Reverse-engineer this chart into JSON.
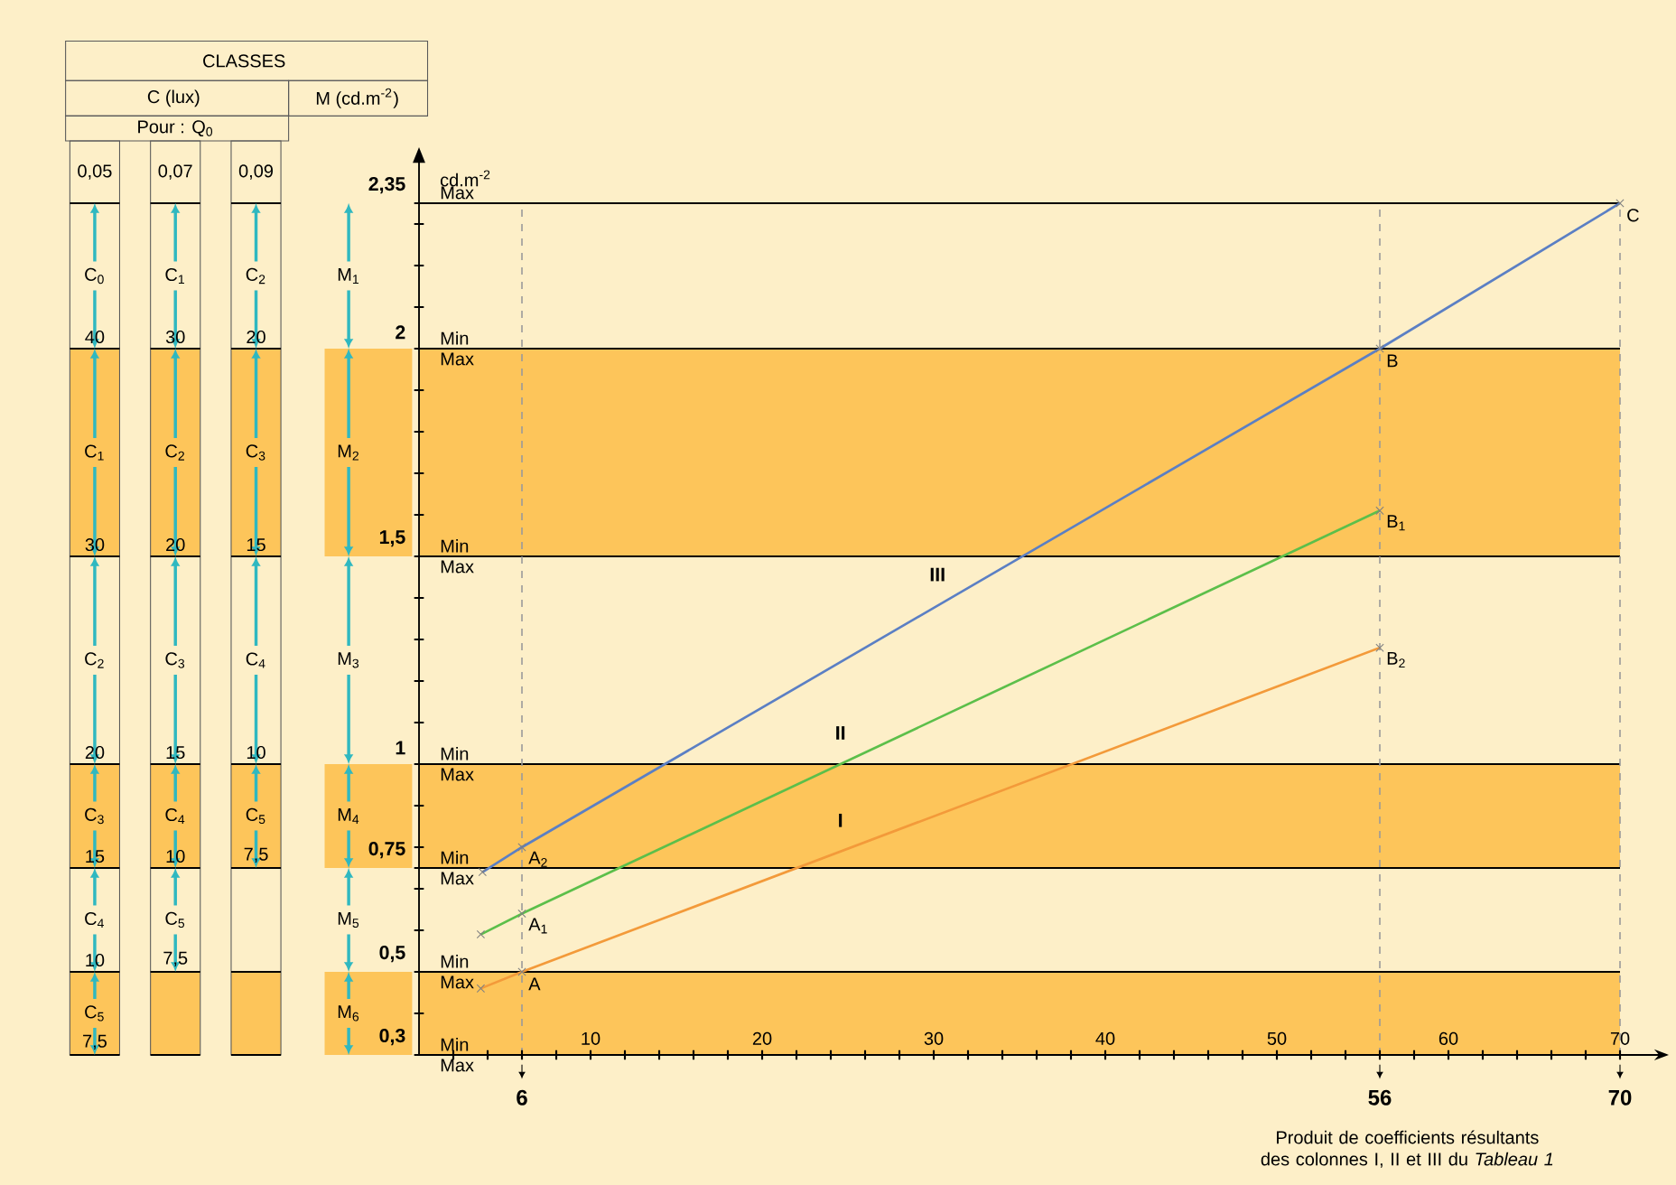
{
  "chart_data": {
    "type": "line",
    "xlabel": "Produit de coefficients résultants des colonnes I, II et III du *Tableau 1*",
    "ylabel": "cd.m$^{-2}$",
    "xlim": [
      0,
      72
    ],
    "ylim": [
      0.3,
      2.45
    ],
    "xticks": [
      {
        "value": 2,
        "label": null
      },
      {
        "value": 4,
        "label": null
      },
      {
        "value": 6,
        "label": null
      },
      {
        "value": 8,
        "label": null
      },
      10,
      {
        "value": 12,
        "label": null
      },
      {
        "value": 14,
        "label": null
      },
      {
        "value": 16,
        "label": null
      },
      {
        "value": 18,
        "label": null
      },
      20,
      {
        "value": 22,
        "label": null
      },
      {
        "value": 24,
        "label": null
      },
      {
        "value": 26,
        "label": null
      },
      {
        "value": 28,
        "label": null
      },
      30,
      {
        "value": 32,
        "label": null
      },
      {
        "value": 34,
        "label": null
      },
      {
        "value": 36,
        "label": null
      },
      {
        "value": 38,
        "label": null
      },
      40,
      {
        "value": 42,
        "label": null
      },
      {
        "value": 44,
        "label": null
      },
      {
        "value": 46,
        "label": null
      },
      {
        "value": 48,
        "label": null
      },
      50,
      {
        "value": 52,
        "label": null
      },
      {
        "value": 54,
        "label": null
      },
      {
        "value": 56,
        "label": null
      },
      {
        "value": 58,
        "label": null
      },
      60,
      {
        "value": 62,
        "label": null
      },
      {
        "value": 64,
        "label": null
      },
      {
        "value": 66,
        "label": null
      },
      {
        "value": 68,
        "label": null
      },
      70
    ],
    "yticks": [
      {
        "value": 0.3,
        "label": "0,3"
      },
      {
        "value": 0.4,
        "label": null
      },
      {
        "value": 0.5,
        "label": "0,5"
      },
      {
        "value": 0.6,
        "label": null
      },
      {
        "value": 0.7,
        "label": null
      },
      {
        "value": 0.75,
        "label": "0,75"
      },
      {
        "value": 0.8,
        "label": null
      },
      {
        "value": 0.9,
        "label": null
      },
      1,
      {
        "value": 1.1,
        "label": null
      },
      {
        "value": 1.2,
        "label": null
      },
      {
        "value": 1.3,
        "label": null
      },
      {
        "value": 1.4,
        "label": null
      },
      {
        "value": 1.5,
        "label": "1,5"
      },
      {
        "value": 1.6,
        "label": null
      },
      {
        "value": 1.7,
        "label": null
      },
      {
        "value": 1.8,
        "label": null
      },
      {
        "value": 1.9,
        "label": null
      },
      2,
      {
        "value": 2.1,
        "label": null
      },
      {
        "value": 2.2,
        "label": null
      },
      {
        "value": 2.3,
        "label": null
      },
      {
        "value": 2.35,
        "label": "2,35"
      }
    ],
    "marker": "cross",
    "series": [
      {
        "name": "I",
        "color": "#f39a3a",
        "x": [
          3.6,
          6,
          56
        ],
        "values": [
          0.46,
          0.5,
          1.28
        ]
      },
      {
        "name": "II",
        "color": "#5cbf4a",
        "x": [
          3.6,
          6,
          56
        ],
        "values": [
          0.59,
          0.64,
          1.61
        ]
      },
      {
        "name": "III",
        "color": "#5b7fc4",
        "x": [
          3.7,
          6,
          56,
          70
        ],
        "values": [
          0.74,
          0.8,
          2,
          2.35
        ]
      }
    ],
    "bands": [
      {
        "axis": "y",
        "from": 1.5,
        "to": 2,
        "color": "#fdc55a"
      },
      {
        "axis": "y",
        "from": 0.75,
        "to": 1,
        "color": "#fdc55a"
      },
      {
        "axis": "y",
        "from": 0.3,
        "to": 0.5,
        "color": "#fdc55a"
      }
    ],
    "ref_lines": [
      {
        "axis": "y",
        "value": 2.35
      },
      {
        "axis": "y",
        "value": 2
      },
      {
        "axis": "y",
        "value": 1.5
      },
      {
        "axis": "y",
        "value": 1
      },
      {
        "axis": "y",
        "value": 0.75
      },
      {
        "axis": "y",
        "value": 0.5
      },
      {
        "axis": "x",
        "value": 6,
        "label": "6",
        "color": "#9a9a9a",
        "line_style": "dashed"
      },
      {
        "axis": "x",
        "value": 56,
        "label": "56",
        "color": "#9a9a9a",
        "line_style": "dashed"
      },
      {
        "axis": "x",
        "value": 70,
        "label": "70",
        "color": "#9a9a9a",
        "line_style": "dashed"
      }
    ],
    "annotations": [
      "CLASSES",
      "C (lux)",
      "M (cd.m$^{-2}$)",
      "Pour : Q$_{0}$",
      "0,05",
      "0,07",
      "0,09",
      "C$_{0}$",
      "C$_{1}$",
      "C$_{2}$",
      "C$_{3}$",
      "C$_{4}$",
      "C$_{5}$",
      "C$_{1}$",
      "C$_{2}$",
      "C$_{3}$",
      "C$_{4}$",
      "C$_{5}$",
      "C$_{2}$",
      "C$_{3}$",
      "C$_{4}$",
      "C$_{5}$",
      "M$_{1}$",
      "M$_{2}$",
      "M$_{3}$",
      "M$_{4}$",
      "M$_{5}$",
      "M$_{6}$",
      "40",
      "30",
      "20",
      "15",
      "10",
      "7,5",
      "30",
      "20",
      "15",
      "10",
      "7,5",
      "20",
      "15",
      "10",
      "7,5",
      "Max",
      "Min",
      "Max",
      "Min",
      "Max",
      "Min",
      "Max",
      "Min",
      "Max",
      "Min",
      "Max",
      "Min",
      "Max",
      {
        "text": "A",
        "x": 6,
        "y": 0.5
      },
      {
        "text": "A$_{1}$",
        "x": 6,
        "y": 0.64
      },
      {
        "text": "A$_{2}$",
        "x": 6,
        "y": 0.8
      },
      {
        "text": "B",
        "x": 56,
        "y": 2
      },
      {
        "text": "B$_{1}$",
        "x": 56,
        "y": 1.61
      },
      {
        "text": "B$_{2}$",
        "x": 56,
        "y": 1.28
      },
      {
        "text": "C",
        "x": 70,
        "y": 2.35
      }
    ]
  }
}
